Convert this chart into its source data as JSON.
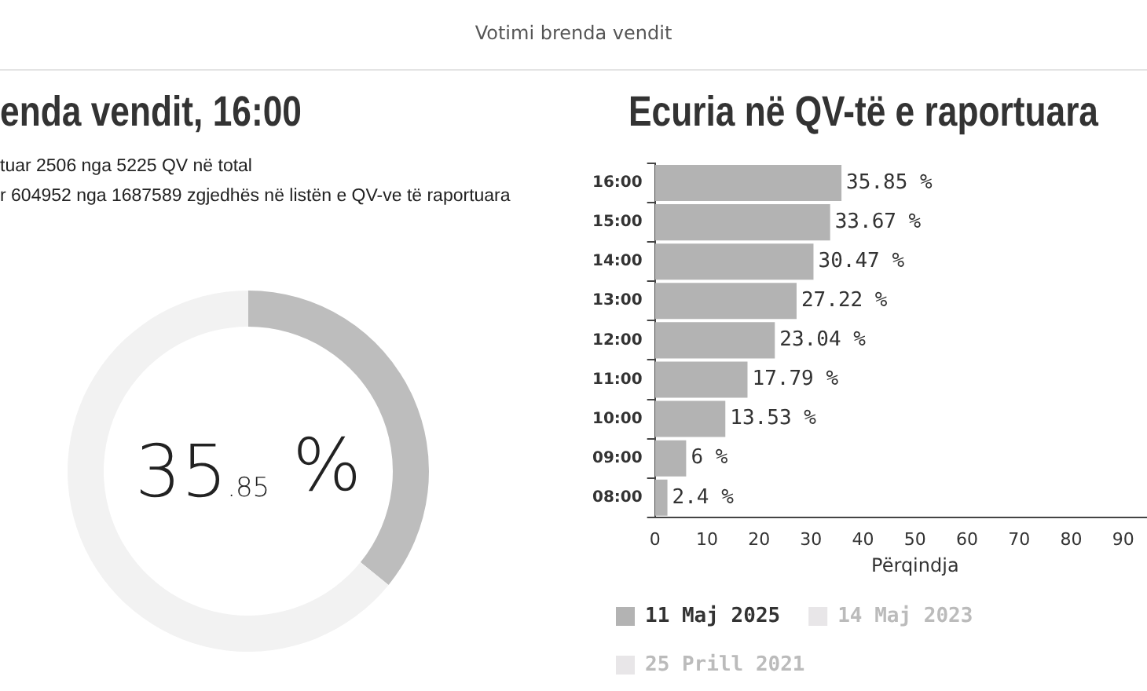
{
  "chart_data": [
    {
      "type": "donut",
      "title": "enda vendit, 16:00",
      "subtitle": "Votimi brenda vendit",
      "annotations": [
        "tuar 2506 nga 5225 QV në total",
        "r 604952 nga 1687589 zgjedhës në listën e QV-ve të raportuara"
      ],
      "categories": [
        null,
        null
      ],
      "values": [
        35.85,
        64.15
      ],
      "colors": [
        "#bdbdbd",
        "#f2f2f2"
      ],
      "value_labels": [
        "35.85 %",
        null
      ],
      "legend": false
    },
    {
      "type": "bar",
      "orientation": "horizontal",
      "title": "Ecuria në QV-të e raportuara",
      "xlabel": "Përqindja",
      "categories": [
        "16:00",
        "15:00",
        "14:00",
        "13:00",
        "12:00",
        "11:00",
        "10:00",
        "09:00",
        "08:00"
      ],
      "series": [
        {
          "name": "11 Maj 2025",
          "color": "#b3b3b3",
          "values": [
            35.85,
            33.67,
            30.47,
            27.22,
            23.04,
            17.79,
            13.53,
            6,
            2.4
          ],
          "value_labels": [
            "35.85 %",
            "33.67 %",
            "30.47 %",
            "27.22 %",
            "23.04 %",
            "17.79 %",
            "13.53 %",
            "6 %",
            "2.4 %"
          ]
        },
        {
          "name": "14 Maj 2023",
          "color": "#e8e6e8",
          "values": [
            null,
            null,
            null,
            null,
            null,
            null,
            null,
            null,
            null
          ]
        },
        {
          "name": "25 Prill 2021",
          "color": "#e8e6e8",
          "values": [
            null,
            null,
            null,
            null,
            null,
            null,
            null,
            null,
            null
          ]
        }
      ],
      "xlim": [
        0,
        100
      ],
      "xticks": [
        0,
        10,
        20,
        30,
        40,
        50,
        60,
        70,
        80,
        90
      ],
      "grid": false,
      "legend": "bottom"
    }
  ]
}
